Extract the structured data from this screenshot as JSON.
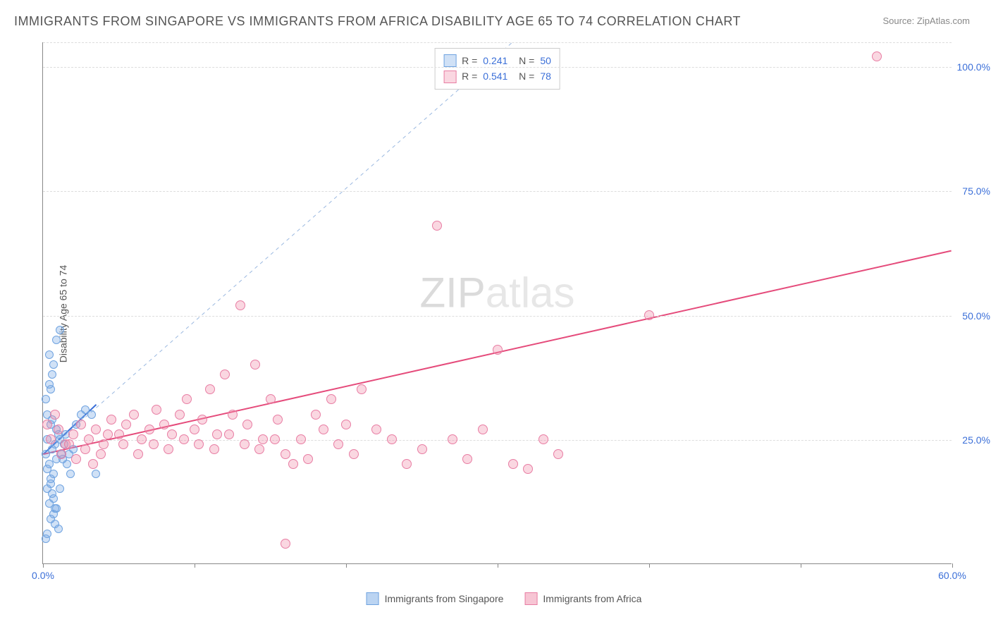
{
  "title": "IMMIGRANTS FROM SINGAPORE VS IMMIGRANTS FROM AFRICA DISABILITY AGE 65 TO 74 CORRELATION CHART",
  "source": "Source: ZipAtlas.com",
  "ylabel": "Disability Age 65 to 74",
  "watermark_a": "ZIP",
  "watermark_b": "atlas",
  "chart": {
    "type": "scatter",
    "background_color": "#ffffff",
    "grid_color": "#dddddd",
    "xlim": [
      0,
      60
    ],
    "ylim": [
      0,
      105
    ],
    "xticks": [
      0.0,
      10,
      20,
      30,
      40,
      50,
      60.0
    ],
    "xtick_labels": {
      "0": "0.0%",
      "60": "60.0%"
    },
    "yticks": [
      25.0,
      50.0,
      75.0,
      100.0
    ],
    "ytick_labels": {
      "25": "25.0%",
      "50": "50.0%",
      "75": "75.0%",
      "100": "100.0%"
    },
    "label_fontsize": 14,
    "label_color": "#3b6fd8",
    "series": [
      {
        "name": "Immigrants from Singapore",
        "color_fill": "rgba(120,170,230,0.35)",
        "color_stroke": "#6fa3e0",
        "marker_size": 12,
        "R": "0.241",
        "N": "50",
        "trend": {
          "x1": 0,
          "y1": 22,
          "x2": 3.5,
          "y2": 32,
          "stroke": "#3b6fd8",
          "width": 2,
          "dash": "none"
        },
        "guide": {
          "x1": 0,
          "y1": 22,
          "x2": 31,
          "y2": 105,
          "stroke": "#9ab8e0",
          "width": 1,
          "dash": "5,5"
        },
        "points": [
          [
            0.2,
            22
          ],
          [
            0.3,
            25
          ],
          [
            0.4,
            20
          ],
          [
            0.5,
            28
          ],
          [
            0.6,
            23
          ],
          [
            0.7,
            18
          ],
          [
            0.8,
            24
          ],
          [
            0.9,
            21
          ],
          [
            1.0,
            26
          ],
          [
            0.3,
            15
          ],
          [
            0.4,
            12
          ],
          [
            0.5,
            17
          ],
          [
            0.6,
            14
          ],
          [
            0.7,
            10
          ],
          [
            0.8,
            8
          ],
          [
            1.0,
            7
          ],
          [
            0.3,
            30
          ],
          [
            0.5,
            35
          ],
          [
            0.7,
            40
          ],
          [
            0.9,
            45
          ],
          [
            1.1,
            47
          ],
          [
            0.4,
            42
          ],
          [
            0.6,
            38
          ],
          [
            1.2,
            22
          ],
          [
            1.4,
            24
          ],
          [
            1.6,
            20
          ],
          [
            1.8,
            18
          ],
          [
            2.0,
            23
          ],
          [
            2.2,
            28
          ],
          [
            2.5,
            30
          ],
          [
            2.8,
            31
          ],
          [
            3.2,
            30
          ],
          [
            3.5,
            18
          ],
          [
            0.2,
            5
          ],
          [
            0.3,
            6
          ],
          [
            0.5,
            9
          ],
          [
            0.8,
            11
          ],
          [
            0.2,
            33
          ],
          [
            0.4,
            36
          ],
          [
            0.6,
            29
          ],
          [
            0.9,
            27
          ],
          [
            1.1,
            25
          ],
          [
            1.3,
            21
          ],
          [
            1.5,
            26
          ],
          [
            1.7,
            22
          ],
          [
            0.3,
            19
          ],
          [
            0.5,
            16
          ],
          [
            0.7,
            13
          ],
          [
            0.9,
            11
          ],
          [
            1.1,
            15
          ]
        ]
      },
      {
        "name": "Immigrants from Africa",
        "color_fill": "rgba(240,140,170,0.35)",
        "color_stroke": "#e87da3",
        "marker_size": 14,
        "R": "0.541",
        "N": "78",
        "trend": {
          "x1": 0,
          "y1": 22,
          "x2": 60,
          "y2": 63,
          "stroke": "#e54b7b",
          "width": 2,
          "dash": "none"
        },
        "points": [
          [
            0.5,
            25
          ],
          [
            1,
            27
          ],
          [
            1.5,
            24
          ],
          [
            2,
            26
          ],
          [
            2.5,
            28
          ],
          [
            3,
            25
          ],
          [
            3.5,
            27
          ],
          [
            4,
            24
          ],
          [
            4.5,
            29
          ],
          [
            5,
            26
          ],
          [
            5.5,
            28
          ],
          [
            6,
            30
          ],
          [
            6.5,
            25
          ],
          [
            7,
            27
          ],
          [
            7.5,
            31
          ],
          [
            8,
            28
          ],
          [
            8.5,
            26
          ],
          [
            9,
            30
          ],
          [
            9.5,
            33
          ],
          [
            10,
            27
          ],
          [
            10.5,
            29
          ],
          [
            11,
            35
          ],
          [
            11.5,
            26
          ],
          [
            12,
            38
          ],
          [
            12.5,
            30
          ],
          [
            13,
            52
          ],
          [
            13.5,
            28
          ],
          [
            14,
            40
          ],
          [
            14.5,
            25
          ],
          [
            15,
            33
          ],
          [
            15.5,
            29
          ],
          [
            16,
            22
          ],
          [
            16.5,
            20
          ],
          [
            17,
            25
          ],
          [
            17.5,
            21
          ],
          [
            18,
            30
          ],
          [
            18.5,
            27
          ],
          [
            19,
            33
          ],
          [
            19.5,
            24
          ],
          [
            20,
            28
          ],
          [
            20.5,
            22
          ],
          [
            21,
            35
          ],
          [
            22,
            27
          ],
          [
            23,
            25
          ],
          [
            24,
            20
          ],
          [
            25,
            23
          ],
          [
            26,
            68
          ],
          [
            27,
            25
          ],
          [
            28,
            21
          ],
          [
            29,
            27
          ],
          [
            30,
            43
          ],
          [
            31,
            20
          ],
          [
            32,
            19
          ],
          [
            33,
            25
          ],
          [
            34,
            22
          ],
          [
            16,
            4
          ],
          [
            40,
            50
          ],
          [
            55,
            102
          ],
          [
            0.3,
            28
          ],
          [
            0.8,
            30
          ],
          [
            1.2,
            22
          ],
          [
            1.7,
            24
          ],
          [
            2.2,
            21
          ],
          [
            2.8,
            23
          ],
          [
            3.3,
            20
          ],
          [
            3.8,
            22
          ],
          [
            4.3,
            26
          ],
          [
            5.3,
            24
          ],
          [
            6.3,
            22
          ],
          [
            7.3,
            24
          ],
          [
            8.3,
            23
          ],
          [
            9.3,
            25
          ],
          [
            10.3,
            24
          ],
          [
            11.3,
            23
          ],
          [
            12.3,
            26
          ],
          [
            13.3,
            24
          ],
          [
            14.3,
            23
          ],
          [
            15.3,
            25
          ]
        ]
      }
    ]
  },
  "bottom_legend": [
    {
      "label": "Immigrants from Singapore",
      "fill": "rgba(120,170,230,0.5)",
      "stroke": "#6fa3e0"
    },
    {
      "label": "Immigrants from Africa",
      "fill": "rgba(240,140,170,0.5)",
      "stroke": "#e87da3"
    }
  ]
}
